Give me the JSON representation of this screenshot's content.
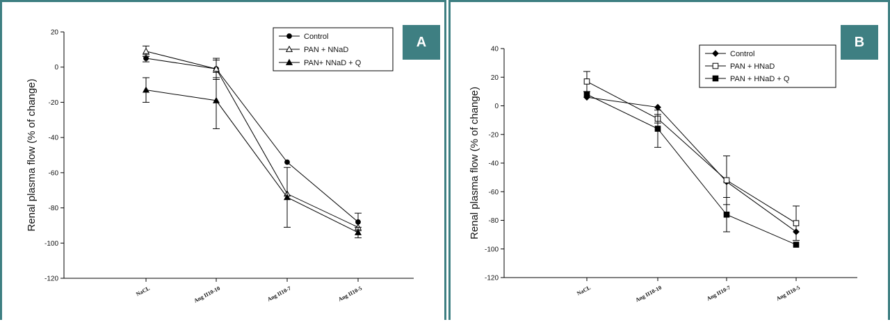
{
  "chart_data": [
    {
      "panel": "A",
      "type": "line",
      "ylabel": "Renal plasma flow (% of change)",
      "ylim": [
        -120,
        20
      ],
      "yticks": [
        20,
        0,
        -20,
        -40,
        -60,
        -80,
        -100,
        -120
      ],
      "categories": [
        "NaCL",
        "Ang II10-10",
        "Ang II10-7",
        "Ang II10-5"
      ],
      "legend_placement": "top-right",
      "series": [
        {
          "name": "Control",
          "marker": "circle",
          "values": [
            5,
            -1,
            -54,
            -88
          ],
          "error": [
            2,
            6,
            0,
            5
          ]
        },
        {
          "name": "PAN + NNaD",
          "marker": "open-triangle",
          "values": [
            9,
            -1,
            -72,
            -91
          ],
          "error": [
            3,
            5,
            0,
            0
          ]
        },
        {
          "name": "PAN+ NNaD + Q",
          "marker": "triangle",
          "values": [
            -13,
            -19,
            -74,
            -94
          ],
          "error": [
            7,
            16,
            17,
            3
          ]
        }
      ]
    },
    {
      "panel": "B",
      "type": "line",
      "ylabel": "Renal plasma flow (% of change)",
      "ylim": [
        -120,
        40
      ],
      "yticks": [
        40,
        20,
        0,
        -20,
        -40,
        -60,
        -80,
        -100,
        -120
      ],
      "categories": [
        "NaCL",
        "Ang II10-10",
        "Ang II10-7",
        "Ang II10-5"
      ],
      "legend_placement": "top-right",
      "series": [
        {
          "name": "Control",
          "marker": "diamond",
          "values": [
            6,
            -1,
            -53,
            -88
          ],
          "error": [
            0,
            0,
            0,
            0
          ]
        },
        {
          "name": "PAN + HNaD",
          "marker": "open-square",
          "values": [
            17,
            -9,
            -52,
            -82
          ],
          "error": [
            7,
            3,
            17,
            12
          ]
        },
        {
          "name": "PAN + HNaD + Q",
          "marker": "square",
          "values": [
            8,
            -16,
            -76,
            -97
          ],
          "error": [
            0,
            13,
            12,
            0
          ]
        }
      ]
    }
  ],
  "panels": {
    "a_label": "A",
    "b_label": "B"
  }
}
